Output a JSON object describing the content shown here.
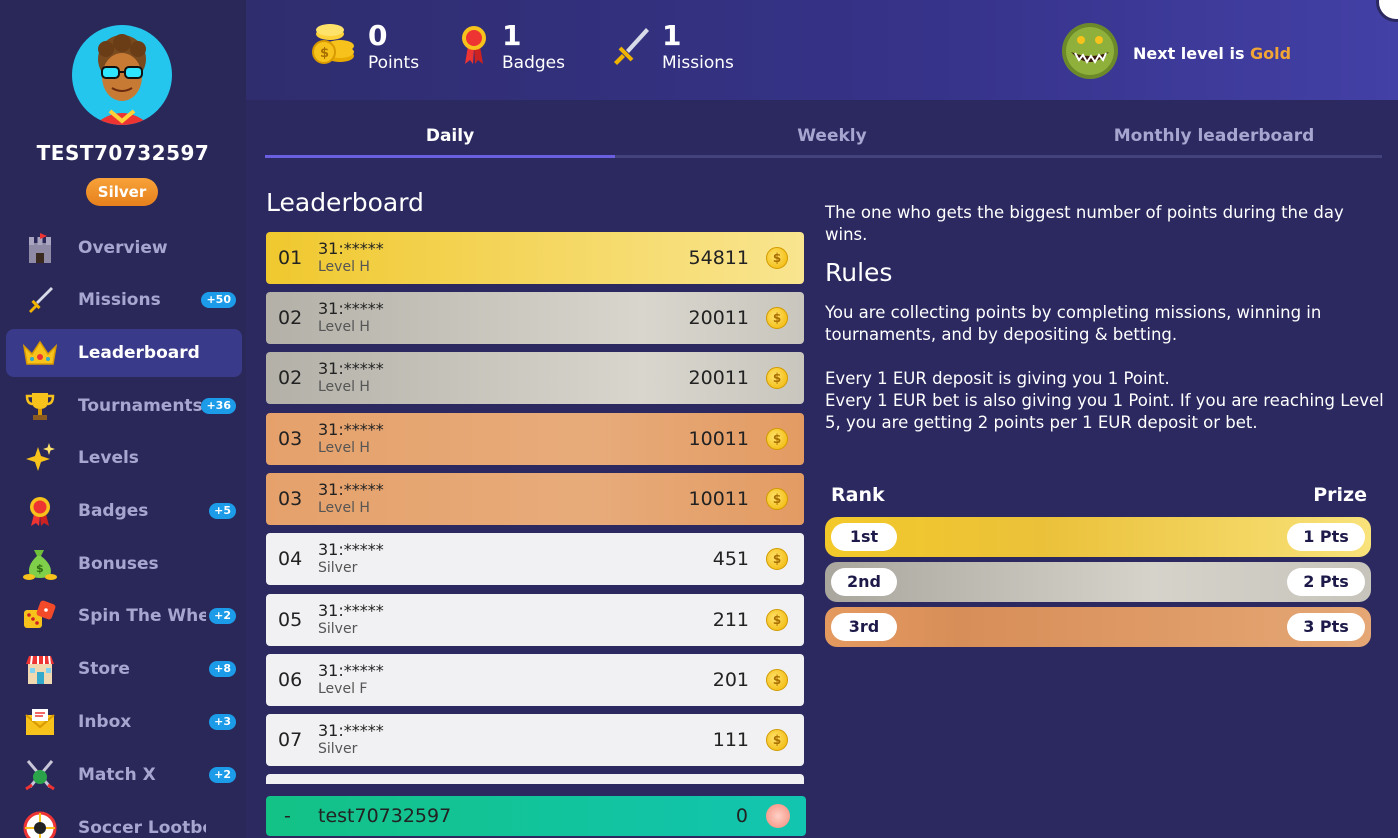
{
  "user": {
    "name": "TEST70732597",
    "tier": "Silver"
  },
  "sidebar": {
    "items": [
      {
        "label": "Overview",
        "icon": "castle-icon",
        "count": ""
      },
      {
        "label": "Missions",
        "icon": "sword-icon",
        "count": "+50"
      },
      {
        "label": "Leaderboard",
        "icon": "crown-icon",
        "count": "",
        "active": true
      },
      {
        "label": "Tournaments",
        "icon": "trophy-icon",
        "count": "+36"
      },
      {
        "label": "Levels",
        "icon": "sparkles-icon",
        "count": ""
      },
      {
        "label": "Badges",
        "icon": "medal-icon",
        "count": "+5"
      },
      {
        "label": "Bonuses",
        "icon": "money-bag-icon",
        "count": ""
      },
      {
        "label": "Spin The Wheel",
        "icon": "dice-icon",
        "count": "+2"
      },
      {
        "label": "Store",
        "icon": "store-icon",
        "count": "+8"
      },
      {
        "label": "Inbox",
        "icon": "envelope-icon",
        "count": "+3"
      },
      {
        "label": "Match X",
        "icon": "crossed-sticks-icon",
        "count": "+2"
      },
      {
        "label": "Soccer Lootbox",
        "icon": "soccer-wheel-icon",
        "count": ""
      }
    ]
  },
  "header": {
    "points": {
      "value": "0",
      "label": "Points"
    },
    "badges": {
      "value": "1",
      "label": "Badges"
    },
    "missions": {
      "value": "1",
      "label": "Missions"
    },
    "next_level_prefix": "Next level is ",
    "next_level_name": "Gold"
  },
  "tabs": {
    "daily": "Daily",
    "weekly": "Weekly",
    "monthly": "Monthly leaderboard"
  },
  "leaderboard": {
    "title": "Leaderboard",
    "rows": [
      {
        "rank": "01",
        "name": "31:*****",
        "level": "Level H",
        "score": "54811",
        "style": "gold"
      },
      {
        "rank": "02",
        "name": "31:*****",
        "level": "Level H",
        "score": "20011",
        "style": "silver"
      },
      {
        "rank": "02",
        "name": "31:*****",
        "level": "Level H",
        "score": "20011",
        "style": "silver"
      },
      {
        "rank": "03",
        "name": "31:*****",
        "level": "Level H",
        "score": "10011",
        "style": "bronze"
      },
      {
        "rank": "03",
        "name": "31:*****",
        "level": "Level H",
        "score": "10011",
        "style": "bronze"
      },
      {
        "rank": "04",
        "name": "31:*****",
        "level": "Silver",
        "score": "451",
        "style": "plain"
      },
      {
        "rank": "05",
        "name": "31:*****",
        "level": "Silver",
        "score": "211",
        "style": "plain"
      },
      {
        "rank": "06",
        "name": "31:*****",
        "level": "Level F",
        "score": "201",
        "style": "plain"
      },
      {
        "rank": "07",
        "name": "31:*****",
        "level": "Silver",
        "score": "111",
        "style": "plain"
      }
    ],
    "coin_symbol": "$",
    "my_row": {
      "rank": "-",
      "name": "test70732597",
      "score": "0"
    }
  },
  "rules": {
    "description": "The one who gets the biggest number of points during the day wins.",
    "title": "Rules",
    "p1": "You are collecting points by completing missions, winning in tournaments, and by depositing & betting.",
    "p2a": "Every 1 EUR deposit is giving you 1 Point.",
    "p2b": "Every 1 EUR bet is also giving you 1 Point. If you are reaching Level 5, you are getting 2 points per 1 EUR deposit or bet."
  },
  "prizes": {
    "rank_header": "Rank",
    "prize_header": "Prize",
    "rows": [
      {
        "rank": "1st",
        "prize": "1 Pts"
      },
      {
        "rank": "2nd",
        "prize": "2 Pts"
      },
      {
        "rank": "3rd",
        "prize": "3 Pts"
      }
    ]
  },
  "colors": {
    "accent": "#6a5fe0",
    "gold": "#f0a535",
    "badge_blue": "#1b9be8",
    "my_row": "#13c285"
  }
}
